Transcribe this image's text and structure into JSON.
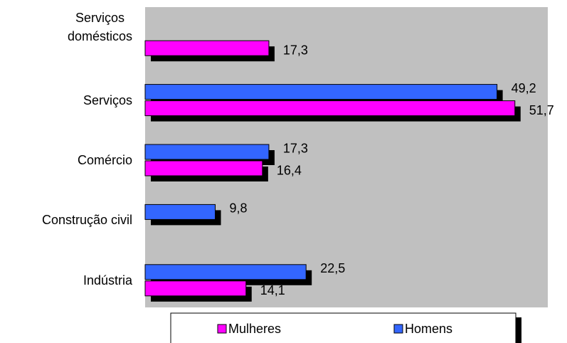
{
  "chart_data": {
    "type": "bar",
    "orientation": "horizontal",
    "categories": [
      "Serviços\ndomésticos",
      "Serviços",
      "Comércio",
      "Construção civil",
      "Indústria"
    ],
    "series": [
      {
        "name": "Mulheres",
        "color": "#ff00ff",
        "values": [
          17.3,
          51.7,
          16.4,
          null,
          14.1
        ],
        "value_labels": [
          "17,3",
          "51,7",
          "16,4",
          null,
          "14,1"
        ]
      },
      {
        "name": "Homens",
        "color": "#3366ff",
        "values": [
          null,
          49.2,
          17.3,
          9.8,
          22.5
        ],
        "value_labels": [
          null,
          "49,2",
          "17,3",
          "9,8",
          "22,5"
        ]
      }
    ],
    "xlim": [
      0,
      56.3
    ],
    "plot_background": "#c0c0c0",
    "shadow": true
  }
}
